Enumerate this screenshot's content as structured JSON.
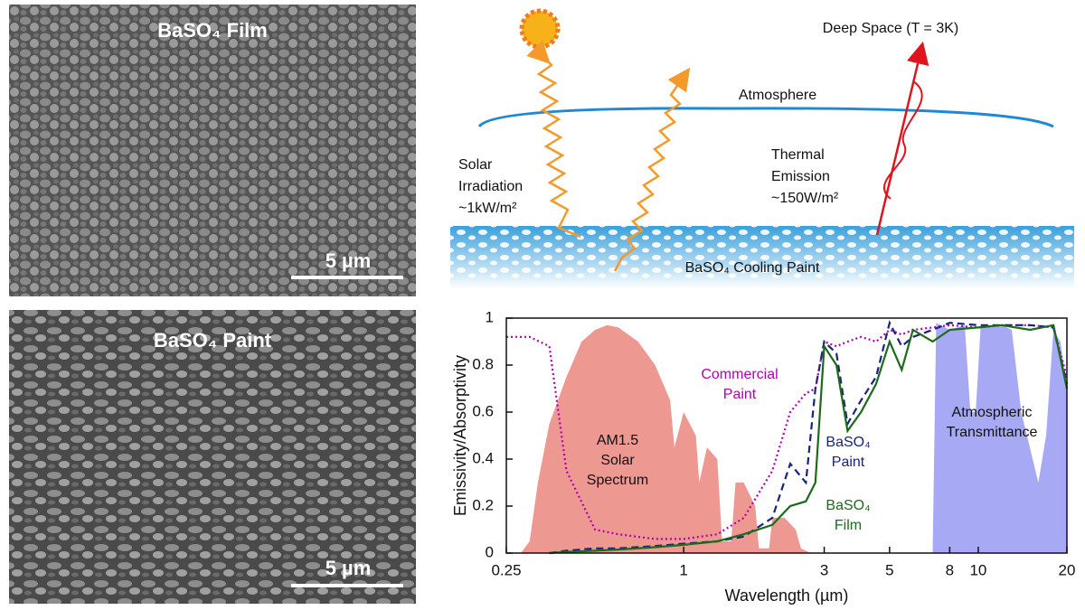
{
  "panels": {
    "sem_film": {
      "label": "BaSO₄ Film",
      "scale_bar": "5 µm"
    },
    "sem_paint": {
      "label": "BaSO₄ Paint",
      "scale_bar": "5 µm"
    }
  },
  "diagram": {
    "deep_space": "Deep Space (T = 3K)",
    "atmosphere": "Atmosphere",
    "solar_irradiation": [
      "Solar",
      "Irradiation",
      "~1kW/m²"
    ],
    "thermal_emission": [
      "Thermal",
      "Emission",
      "~150W/m²"
    ],
    "paint_layer": "BaSO₄ Cooling Paint"
  },
  "chart_data": {
    "type": "line",
    "ylabel": "Emissivity/Absorptivity",
    "xlabel": "Wavelength (µm)",
    "xscale": "log",
    "xlim": [
      0.25,
      20
    ],
    "xticks": [
      0.25,
      1,
      3,
      5,
      8,
      10,
      20
    ],
    "ylim": [
      0,
      1
    ],
    "yticks": [
      0,
      0.2,
      0.4,
      0.6,
      0.8,
      1
    ],
    "series": [
      {
        "name": [
          "AM1.5",
          "Solar",
          "Spectrum"
        ],
        "style": "area",
        "color": "#e8756d",
        "x": [
          0.28,
          0.3,
          0.32,
          0.35,
          0.4,
          0.45,
          0.5,
          0.55,
          0.6,
          0.7,
          0.8,
          0.9,
          0.93,
          1.0,
          1.1,
          1.13,
          1.2,
          1.3,
          1.35,
          1.45,
          1.5,
          1.6,
          1.75,
          1.8,
          1.95,
          2.0,
          2.2,
          2.4,
          2.5,
          2.7
        ],
        "values": [
          0,
          0.05,
          0.3,
          0.55,
          0.75,
          0.9,
          0.95,
          0.97,
          0.96,
          0.9,
          0.8,
          0.65,
          0.45,
          0.6,
          0.5,
          0.3,
          0.45,
          0.4,
          0.05,
          0.05,
          0.3,
          0.3,
          0.2,
          0.02,
          0.02,
          0.15,
          0.15,
          0.1,
          0.02,
          0
        ]
      },
      {
        "name": [
          "Atmospheric",
          "Transmittance"
        ],
        "style": "area",
        "color": "#8a8cf0",
        "x": [
          7,
          7.2,
          8,
          9,
          9.4,
          9.8,
          10.2,
          12,
          13,
          14,
          16,
          17,
          18,
          19,
          20
        ],
        "values": [
          0,
          0.98,
          0.95,
          0.97,
          0.6,
          0.6,
          0.97,
          0.97,
          0.95,
          0.6,
          0.3,
          0.5,
          0.95,
          0.9,
          0.7
        ]
      },
      {
        "name": [
          "Commercial",
          "Paint"
        ],
        "style": "dotted",
        "color": "#b000b0",
        "x": [
          0.25,
          0.3,
          0.35,
          0.4,
          0.5,
          0.6,
          0.8,
          1,
          1.3,
          1.6,
          2,
          2.3,
          2.6,
          2.8,
          3,
          3.3,
          3.6,
          4,
          4.5,
          5,
          5.5,
          6,
          7,
          8,
          10,
          12,
          15,
          18,
          20
        ],
        "values": [
          0.92,
          0.92,
          0.88,
          0.35,
          0.1,
          0.08,
          0.06,
          0.06,
          0.08,
          0.15,
          0.35,
          0.6,
          0.68,
          0.7,
          0.9,
          0.88,
          0.9,
          0.92,
          0.9,
          0.95,
          0.93,
          0.95,
          0.96,
          0.97,
          0.96,
          0.97,
          0.97,
          0.96,
          0.75
        ]
      },
      {
        "name": [
          "BaSO₄",
          "Paint"
        ],
        "style": "dashed",
        "color": "#1a237e",
        "x": [
          0.25,
          0.3,
          0.35,
          0.4,
          0.5,
          0.6,
          0.8,
          1,
          1.3,
          1.6,
          2,
          2.3,
          2.6,
          2.8,
          3,
          3.3,
          3.6,
          4,
          4.5,
          5,
          5.5,
          6,
          7,
          8,
          10,
          12,
          15,
          18,
          20
        ],
        "values": [
          null,
          null,
          0,
          0.01,
          0.02,
          0.02,
          0.03,
          0.04,
          0.05,
          0.07,
          0.15,
          0.38,
          0.3,
          0.7,
          0.9,
          0.85,
          0.55,
          0.65,
          0.75,
          0.98,
          0.88,
          0.92,
          0.95,
          0.98,
          0.97,
          0.97,
          0.97,
          0.96,
          0.72
        ]
      },
      {
        "name": [
          "BaSO₄",
          "Film"
        ],
        "style": "solid",
        "color": "#1b6b1b",
        "x": [
          0.25,
          0.3,
          0.35,
          0.4,
          0.5,
          0.6,
          0.8,
          1,
          1.3,
          1.6,
          2,
          2.3,
          2.6,
          2.8,
          3,
          3.3,
          3.6,
          4,
          4.5,
          5,
          5.5,
          6,
          7,
          8,
          10,
          12,
          15,
          18,
          20
        ],
        "values": [
          null,
          null,
          0,
          0.005,
          0.01,
          0.015,
          0.025,
          0.035,
          0.05,
          0.08,
          0.12,
          0.2,
          0.22,
          0.3,
          0.88,
          0.8,
          0.52,
          0.6,
          0.72,
          0.9,
          0.78,
          0.95,
          0.9,
          0.95,
          0.96,
          0.97,
          0.95,
          0.97,
          0.7
        ]
      }
    ]
  }
}
